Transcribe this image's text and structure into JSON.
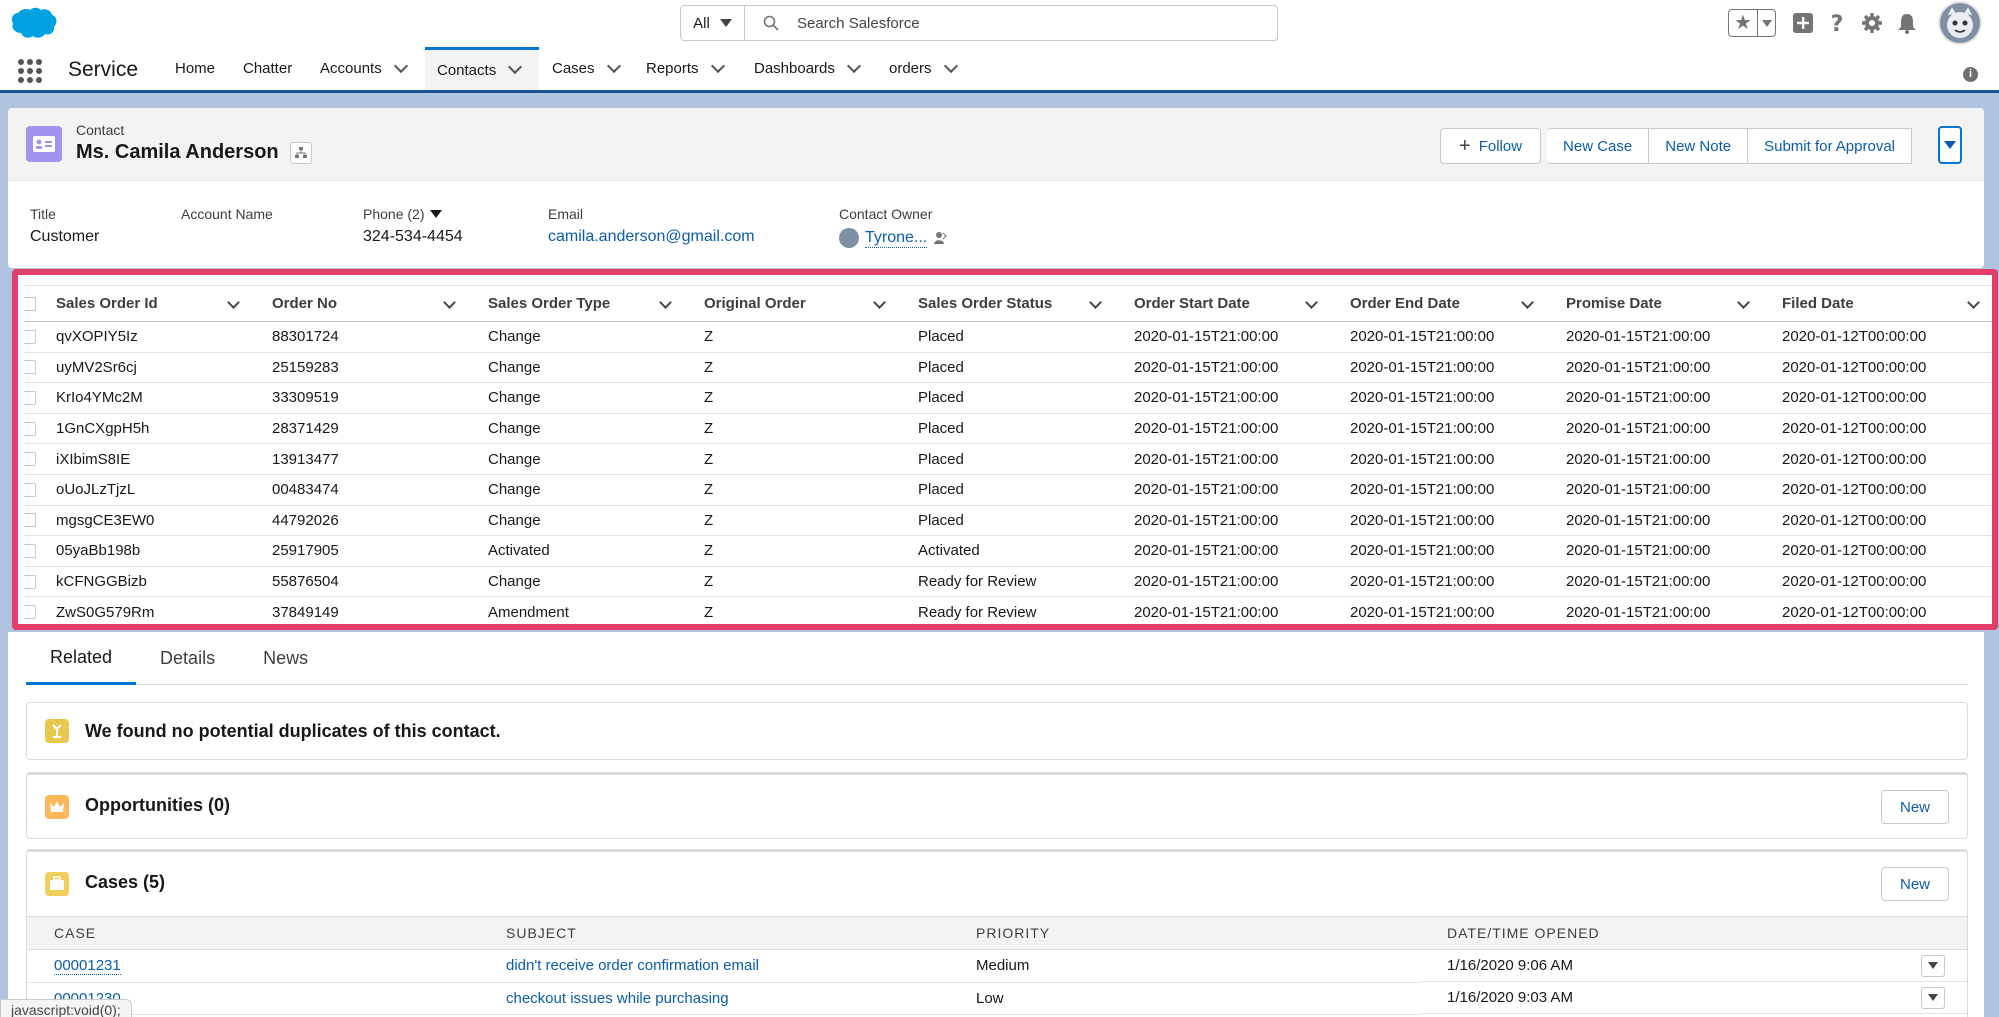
{
  "global_header": {
    "search_scope": "All",
    "search_placeholder": "Search Salesforce"
  },
  "nav": {
    "app_name": "Service",
    "items": [
      {
        "label": "Home",
        "has_menu": false
      },
      {
        "label": "Chatter",
        "has_menu": false
      },
      {
        "label": "Accounts",
        "has_menu": true
      },
      {
        "label": "Contacts",
        "has_menu": true,
        "active": true
      },
      {
        "label": "Cases",
        "has_menu": true
      },
      {
        "label": "Reports",
        "has_menu": true
      },
      {
        "label": "Dashboards",
        "has_menu": true
      },
      {
        "label": "orders",
        "has_menu": true
      }
    ]
  },
  "record": {
    "object_label": "Contact",
    "name": "Ms. Camila Anderson",
    "actions": {
      "follow": "Follow",
      "new_case": "New Case",
      "new_note": "New Note",
      "submit": "Submit for Approval"
    },
    "fields": {
      "title_label": "Title",
      "title_value": "Customer",
      "account_label": "Account Name",
      "account_value": "",
      "phone_label": "Phone (2)",
      "phone_value": "324-534-4454",
      "email_label": "Email",
      "email_value": "camila.anderson@gmail.com",
      "owner_label": "Contact Owner",
      "owner_value": "Tyrone..."
    }
  },
  "sales_orders": {
    "columns": [
      "Sales Order Id",
      "Order No",
      "Sales Order Type",
      "Original Order",
      "Sales Order Status",
      "Order Start Date",
      "Order End Date",
      "Promise Date",
      "Filed Date"
    ],
    "rows": [
      [
        "qvXOPIY5Iz",
        "88301724",
        "Change",
        "Z",
        "Placed",
        "2020-01-15T21:00:00",
        "2020-01-15T21:00:00",
        "2020-01-15T21:00:00",
        "2020-01-12T00:00:00"
      ],
      [
        "uyMV2Sr6cj",
        "25159283",
        "Change",
        "Z",
        "Placed",
        "2020-01-15T21:00:00",
        "2020-01-15T21:00:00",
        "2020-01-15T21:00:00",
        "2020-01-12T00:00:00"
      ],
      [
        "KrIo4YMc2M",
        "33309519",
        "Change",
        "Z",
        "Placed",
        "2020-01-15T21:00:00",
        "2020-01-15T21:00:00",
        "2020-01-15T21:00:00",
        "2020-01-12T00:00:00"
      ],
      [
        "1GnCXgpH5h",
        "28371429",
        "Change",
        "Z",
        "Placed",
        "2020-01-15T21:00:00",
        "2020-01-15T21:00:00",
        "2020-01-15T21:00:00",
        "2020-01-12T00:00:00"
      ],
      [
        "iXIbimS8IE",
        "13913477",
        "Change",
        "Z",
        "Placed",
        "2020-01-15T21:00:00",
        "2020-01-15T21:00:00",
        "2020-01-15T21:00:00",
        "2020-01-12T00:00:00"
      ],
      [
        "oUoJLzTjzL",
        "00483474",
        "Change",
        "Z",
        "Placed",
        "2020-01-15T21:00:00",
        "2020-01-15T21:00:00",
        "2020-01-15T21:00:00",
        "2020-01-12T00:00:00"
      ],
      [
        "mgsgCE3EW0",
        "44792026",
        "Change",
        "Z",
        "Placed",
        "2020-01-15T21:00:00",
        "2020-01-15T21:00:00",
        "2020-01-15T21:00:00",
        "2020-01-12T00:00:00"
      ],
      [
        "05yaBb198b",
        "25917905",
        "Activated",
        "Z",
        "Activated",
        "2020-01-15T21:00:00",
        "2020-01-15T21:00:00",
        "2020-01-15T21:00:00",
        "2020-01-12T00:00:00"
      ],
      [
        "kCFNGGBizb",
        "55876504",
        "Change",
        "Z",
        "Ready for Review",
        "2020-01-15T21:00:00",
        "2020-01-15T21:00:00",
        "2020-01-15T21:00:00",
        "2020-01-12T00:00:00"
      ],
      [
        "ZwS0G579Rm",
        "37849149",
        "Amendment",
        "Z",
        "Ready for Review",
        "2020-01-15T21:00:00",
        "2020-01-15T21:00:00",
        "2020-01-15T21:00:00",
        "2020-01-12T00:00:00"
      ]
    ]
  },
  "tabs": [
    "Related",
    "Details",
    "News"
  ],
  "duplicates": {
    "message": "We found no potential duplicates of this contact."
  },
  "opportunities": {
    "title": "Opportunities (0)",
    "new_label": "New"
  },
  "cases": {
    "title": "Cases (5)",
    "new_label": "New",
    "columns": [
      "CASE",
      "SUBJECT",
      "PRIORITY",
      "DATE/TIME OPENED"
    ],
    "rows": [
      [
        "00001231",
        "didn't receive order confirmation email",
        "Medium",
        "1/16/2020 9:06 AM"
      ],
      [
        "00001230",
        "checkout issues while purchasing",
        "Low",
        "1/16/2020 9:03 AM"
      ]
    ]
  },
  "status_bar": "javascript:void(0);",
  "colors": {
    "brand_blue": "#0176d3",
    "link": "#0b5cab",
    "highlight": "#e43e6b",
    "contact_icon": "#a094ed",
    "nav_underline": "#1b5297"
  }
}
